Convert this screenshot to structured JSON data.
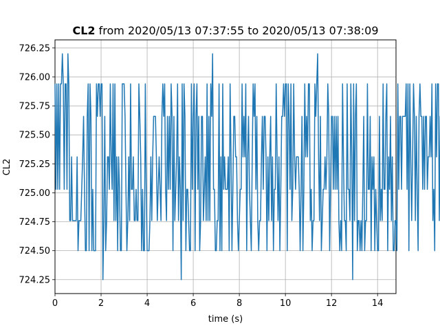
{
  "chart_data": {
    "type": "line",
    "title_bold": "CL2",
    "title_rest": " from 2020/05/13 07:37:55 to 2020/05/13 07:38:09",
    "xlabel": "time (s)",
    "ylabel": "CL2",
    "xlim": [
      0,
      14.8
    ],
    "ylim": [
      724.13,
      726.32
    ],
    "x_ticks": [
      0,
      2,
      4,
      6,
      8,
      10,
      12,
      14
    ],
    "x_tick_labels": [
      "0",
      "2",
      "4",
      "6",
      "8",
      "10",
      "12",
      "14"
    ],
    "y_ticks": [
      724.25,
      724.5,
      724.75,
      725.0,
      725.25,
      725.5,
      725.75,
      726.0,
      726.25
    ],
    "y_tick_labels": [
      "724.25",
      "724.50",
      "724.75",
      "725.00",
      "725.25",
      "725.50",
      "725.75",
      "726.00",
      "726.25"
    ],
    "grid": true,
    "series": [
      {
        "color": "#1f77b4",
        "sample_interval_s": 0.04,
        "levels": [
          724.25,
          724.5,
          724.76,
          725.03,
          725.31,
          725.66,
          725.94,
          726.2
        ],
        "level_codes": "6363636676366376224222224122234531156165131116566566025124436436262414311666531242633422322654131163111242455542343256563253536515234624306265133211635615635125523426252657331122614163433341641355442123364546145321465635212245355414245241336424135565661653623643444313513645466231226567425123343465135535353521216422163326406256122121351226335143413211523263356143524112216355355556361642465253156553535534454623164662555614524215242624633342545445632552342"
      }
    ]
  }
}
